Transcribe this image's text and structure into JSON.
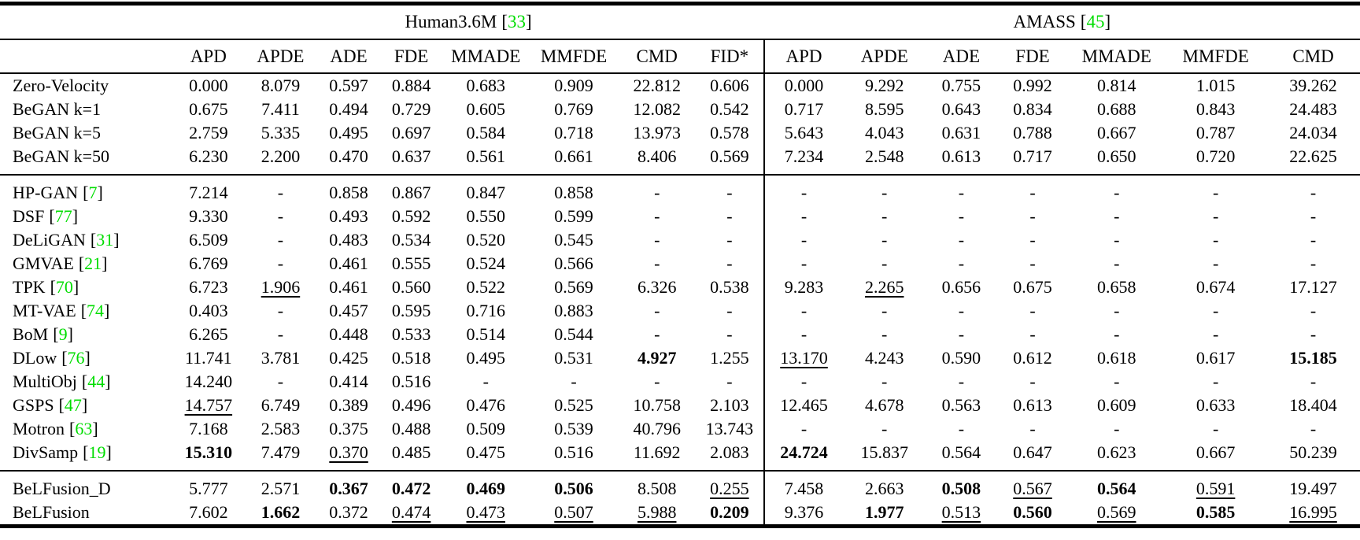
{
  "colors": {
    "citation_green": "#00dd00",
    "text": "#000000",
    "background": "#ffffff"
  },
  "table": {
    "datasets": [
      {
        "label": "Human3.6M",
        "cite": "33",
        "columns": [
          "APD",
          "APDE",
          "ADE",
          "FDE",
          "MMADE",
          "MMFDE",
          "CMD",
          "FID*"
        ]
      },
      {
        "label": "AMASS",
        "cite": "45",
        "columns": [
          "APD",
          "APDE",
          "ADE",
          "FDE",
          "MMADE",
          "MMFDE",
          "CMD"
        ]
      }
    ],
    "groups": [
      {
        "rows": [
          {
            "method": "Zero-Velocity",
            "cite": null,
            "h36m": [
              "0.000",
              "8.079",
              "0.597",
              "0.884",
              "0.683",
              "0.909",
              "22.812",
              "0.606"
            ],
            "amass": [
              "0.000",
              "9.292",
              "0.755",
              "0.992",
              "0.814",
              "1.015",
              "39.262"
            ]
          },
          {
            "method": "BeGAN k=1",
            "cite": null,
            "h36m": [
              "0.675",
              "7.411",
              "0.494",
              "0.729",
              "0.605",
              "0.769",
              "12.082",
              "0.542"
            ],
            "amass": [
              "0.717",
              "8.595",
              "0.643",
              "0.834",
              "0.688",
              "0.843",
              "24.483"
            ]
          },
          {
            "method": "BeGAN k=5",
            "cite": null,
            "h36m": [
              "2.759",
              "5.335",
              "0.495",
              "0.697",
              "0.584",
              "0.718",
              "13.973",
              "0.578"
            ],
            "amass": [
              "5.643",
              "4.043",
              "0.631",
              "0.788",
              "0.667",
              "0.787",
              "24.034"
            ]
          },
          {
            "method": "BeGAN k=50",
            "cite": null,
            "h36m": [
              "6.230",
              "2.200",
              "0.470",
              "0.637",
              "0.561",
              "0.661",
              "8.406",
              "0.569"
            ],
            "amass": [
              "7.234",
              "2.548",
              "0.613",
              "0.717",
              "0.650",
              "0.720",
              "22.625"
            ]
          }
        ]
      },
      {
        "rows": [
          {
            "method": "HP-GAN",
            "cite": "7",
            "h36m": [
              "7.214",
              "-",
              "0.858",
              "0.867",
              "0.847",
              "0.858",
              "-",
              "-"
            ],
            "amass": [
              "-",
              "-",
              "-",
              "-",
              "-",
              "-",
              "-"
            ]
          },
          {
            "method": "DSF",
            "cite": "77",
            "h36m": [
              "9.330",
              "-",
              "0.493",
              "0.592",
              "0.550",
              "0.599",
              "-",
              "-"
            ],
            "amass": [
              "-",
              "-",
              "-",
              "-",
              "-",
              "-",
              "-"
            ]
          },
          {
            "method": "DeLiGAN",
            "cite": "31",
            "h36m": [
              "6.509",
              "-",
              "0.483",
              "0.534",
              "0.520",
              "0.545",
              "-",
              "-"
            ],
            "amass": [
              "-",
              "-",
              "-",
              "-",
              "-",
              "-",
              "-"
            ]
          },
          {
            "method": "GMVAE",
            "cite": "21",
            "h36m": [
              "6.769",
              "-",
              "0.461",
              "0.555",
              "0.524",
              "0.566",
              "-",
              "-"
            ],
            "amass": [
              "-",
              "-",
              "-",
              "-",
              "-",
              "-",
              "-"
            ]
          },
          {
            "method": "TPK",
            "cite": "70",
            "h36m": [
              "6.723",
              {
                "t": "1.906",
                "s": "u"
              },
              "0.461",
              "0.560",
              "0.522",
              "0.569",
              "6.326",
              "0.538"
            ],
            "amass": [
              "9.283",
              {
                "t": "2.265",
                "s": "u"
              },
              "0.656",
              "0.675",
              "0.658",
              "0.674",
              "17.127"
            ]
          },
          {
            "method": "MT-VAE",
            "cite": "74",
            "h36m": [
              "0.403",
              "-",
              "0.457",
              "0.595",
              "0.716",
              "0.883",
              "-",
              "-"
            ],
            "amass": [
              "-",
              "-",
              "-",
              "-",
              "-",
              "-",
              "-"
            ]
          },
          {
            "method": "BoM",
            "cite": "9",
            "h36m": [
              "6.265",
              "-",
              "0.448",
              "0.533",
              "0.514",
              "0.544",
              "-",
              "-"
            ],
            "amass": [
              "-",
              "-",
              "-",
              "-",
              "-",
              "-",
              "-"
            ]
          },
          {
            "method": "DLow",
            "cite": "76",
            "h36m": [
              "11.741",
              "3.781",
              "0.425",
              "0.518",
              "0.495",
              "0.531",
              {
                "t": "4.927",
                "s": "b"
              },
              "1.255"
            ],
            "amass": [
              {
                "t": "13.170",
                "s": "u"
              },
              "4.243",
              "0.590",
              "0.612",
              "0.618",
              "0.617",
              {
                "t": "15.185",
                "s": "b"
              }
            ]
          },
          {
            "method": "MultiObj",
            "cite": "44",
            "h36m": [
              "14.240",
              "-",
              "0.414",
              "0.516",
              "-",
              "-",
              "-",
              "-"
            ],
            "amass": [
              "-",
              "-",
              "-",
              "-",
              "-",
              "-",
              "-"
            ]
          },
          {
            "method": "GSPS",
            "cite": "47",
            "h36m": [
              {
                "t": "14.757",
                "s": "u"
              },
              "6.749",
              "0.389",
              "0.496",
              "0.476",
              "0.525",
              "10.758",
              "2.103"
            ],
            "amass": [
              "12.465",
              "4.678",
              "0.563",
              "0.613",
              "0.609",
              "0.633",
              "18.404"
            ]
          },
          {
            "method": "Motron",
            "cite": "63",
            "h36m": [
              "7.168",
              "2.583",
              "0.375",
              "0.488",
              "0.509",
              "0.539",
              "40.796",
              "13.743"
            ],
            "amass": [
              "-",
              "-",
              "-",
              "-",
              "-",
              "-",
              "-"
            ]
          },
          {
            "method": "DivSamp",
            "cite": "19",
            "h36m": [
              {
                "t": "15.310",
                "s": "b"
              },
              "7.479",
              {
                "t": "0.370",
                "s": "u"
              },
              "0.485",
              "0.475",
              "0.516",
              "11.692",
              "2.083"
            ],
            "amass": [
              {
                "t": "24.724",
                "s": "b"
              },
              "15.837",
              "0.564",
              "0.647",
              "0.623",
              "0.667",
              "50.239"
            ]
          }
        ]
      },
      {
        "rows": [
          {
            "method": "BeLFusion_D",
            "cite": null,
            "h36m": [
              "5.777",
              "2.571",
              {
                "t": "0.367",
                "s": "b"
              },
              {
                "t": "0.472",
                "s": "b"
              },
              {
                "t": "0.469",
                "s": "b"
              },
              {
                "t": "0.506",
                "s": "b"
              },
              "8.508",
              {
                "t": "0.255",
                "s": "u"
              }
            ],
            "amass": [
              "7.458",
              "2.663",
              {
                "t": "0.508",
                "s": "b"
              },
              {
                "t": "0.567",
                "s": "u"
              },
              {
                "t": "0.564",
                "s": "b"
              },
              {
                "t": "0.591",
                "s": "u"
              },
              "19.497"
            ]
          },
          {
            "method": "BeLFusion",
            "cite": null,
            "h36m": [
              "7.602",
              {
                "t": "1.662",
                "s": "b"
              },
              "0.372",
              {
                "t": "0.474",
                "s": "u"
              },
              {
                "t": "0.473",
                "s": "u"
              },
              {
                "t": "0.507",
                "s": "u"
              },
              {
                "t": "5.988",
                "s": "u"
              },
              {
                "t": "0.209",
                "s": "b"
              }
            ],
            "amass": [
              "9.376",
              {
                "t": "1.977",
                "s": "b"
              },
              {
                "t": "0.513",
                "s": "u"
              },
              {
                "t": "0.560",
                "s": "b"
              },
              {
                "t": "0.569",
                "s": "u"
              },
              {
                "t": "0.585",
                "s": "b"
              },
              {
                "t": "16.995",
                "s": "u"
              }
            ]
          }
        ]
      }
    ]
  }
}
